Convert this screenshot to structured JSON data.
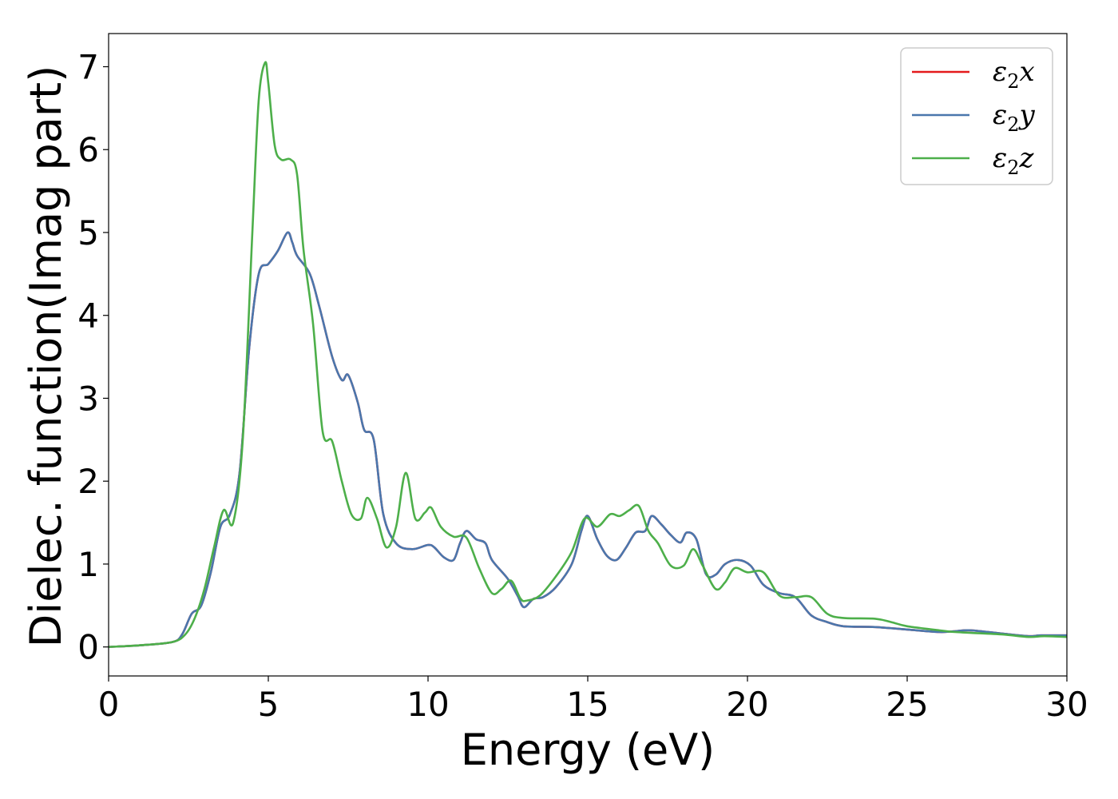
{
  "chart_data": {
    "type": "line",
    "xlabel": "Energy (eV)",
    "ylabel": "Dielec. function(Imag part)",
    "xlim": [
      0,
      30
    ],
    "ylim": [
      -0.35,
      7.4
    ],
    "x_ticks": [
      0,
      5,
      10,
      15,
      20,
      25,
      30
    ],
    "y_ticks": [
      0,
      1,
      2,
      3,
      4,
      5,
      6,
      7
    ],
    "grid": false,
    "legend_position": "top-right",
    "series": [
      {
        "name": "ε₂x",
        "base": "ε",
        "sub": "2",
        "suffix": "x",
        "color": "#e41a1c",
        "x": [
          0,
          1,
          2,
          2.3,
          2.6,
          2.9,
          3.2,
          3.5,
          3.8,
          4.1,
          4.4,
          4.7,
          5.0,
          5.3,
          5.6,
          5.75,
          5.9,
          6.3,
          6.6,
          7.0,
          7.3,
          7.5,
          7.8,
          8.0,
          8.3,
          8.6,
          9.0,
          9.5,
          10.0,
          10.2,
          10.5,
          10.8,
          11.0,
          11.2,
          11.5,
          11.8,
          12.0,
          12.5,
          12.8,
          13.0,
          13.3,
          13.6,
          14.0,
          14.5,
          14.8,
          15.0,
          15.3,
          15.6,
          15.9,
          16.2,
          16.5,
          16.8,
          17.0,
          17.3,
          17.6,
          17.9,
          18.1,
          18.4,
          18.7,
          19.0,
          19.3,
          19.7,
          20.1,
          20.5,
          21.0,
          21.5,
          22.0,
          22.5,
          23.0,
          24.0,
          25.0,
          26.0,
          26.5,
          27.0,
          28.0,
          28.8,
          29.2,
          30.0
        ],
        "y": [
          0,
          0.02,
          0.06,
          0.15,
          0.4,
          0.5,
          0.9,
          1.45,
          1.6,
          2.1,
          3.6,
          4.5,
          4.62,
          4.78,
          5.0,
          4.88,
          4.72,
          4.5,
          4.1,
          3.5,
          3.22,
          3.28,
          2.95,
          2.62,
          2.5,
          1.6,
          1.25,
          1.18,
          1.23,
          1.2,
          1.08,
          1.05,
          1.25,
          1.4,
          1.3,
          1.25,
          1.05,
          0.82,
          0.62,
          0.48,
          0.58,
          0.6,
          0.72,
          1.0,
          1.4,
          1.58,
          1.3,
          1.1,
          1.05,
          1.2,
          1.38,
          1.4,
          1.58,
          1.48,
          1.35,
          1.26,
          1.38,
          1.3,
          0.88,
          0.87,
          1.0,
          1.05,
          0.98,
          0.75,
          0.65,
          0.6,
          0.38,
          0.3,
          0.25,
          0.24,
          0.21,
          0.18,
          0.19,
          0.2,
          0.16,
          0.13,
          0.14,
          0.14
        ]
      },
      {
        "name": "ε₂y",
        "base": "ε",
        "sub": "2",
        "suffix": "y",
        "color": "#4a77ad",
        "x": [
          0,
          1,
          2,
          2.3,
          2.6,
          2.9,
          3.2,
          3.5,
          3.8,
          4.1,
          4.4,
          4.7,
          5.0,
          5.3,
          5.6,
          5.75,
          5.9,
          6.3,
          6.6,
          7.0,
          7.3,
          7.5,
          7.8,
          8.0,
          8.3,
          8.6,
          9.0,
          9.5,
          10.0,
          10.2,
          10.5,
          10.8,
          11.0,
          11.2,
          11.5,
          11.8,
          12.0,
          12.5,
          12.8,
          13.0,
          13.3,
          13.6,
          14.0,
          14.5,
          14.8,
          15.0,
          15.3,
          15.6,
          15.9,
          16.2,
          16.5,
          16.8,
          17.0,
          17.3,
          17.6,
          17.9,
          18.1,
          18.4,
          18.7,
          19.0,
          19.3,
          19.7,
          20.1,
          20.5,
          21.0,
          21.5,
          22.0,
          22.5,
          23.0,
          24.0,
          25.0,
          26.0,
          26.5,
          27.0,
          28.0,
          28.8,
          29.2,
          30.0
        ],
        "y": [
          0,
          0.02,
          0.06,
          0.15,
          0.4,
          0.5,
          0.9,
          1.45,
          1.6,
          2.1,
          3.6,
          4.5,
          4.62,
          4.78,
          5.0,
          4.88,
          4.72,
          4.5,
          4.1,
          3.5,
          3.22,
          3.28,
          2.95,
          2.62,
          2.5,
          1.6,
          1.25,
          1.18,
          1.23,
          1.2,
          1.08,
          1.05,
          1.25,
          1.4,
          1.3,
          1.25,
          1.05,
          0.82,
          0.62,
          0.48,
          0.58,
          0.6,
          0.72,
          1.0,
          1.4,
          1.58,
          1.3,
          1.1,
          1.05,
          1.2,
          1.38,
          1.4,
          1.58,
          1.48,
          1.35,
          1.26,
          1.38,
          1.3,
          0.88,
          0.87,
          1.0,
          1.05,
          0.98,
          0.75,
          0.65,
          0.6,
          0.38,
          0.3,
          0.25,
          0.24,
          0.21,
          0.18,
          0.19,
          0.2,
          0.16,
          0.13,
          0.14,
          0.14
        ]
      },
      {
        "name": "ε₂z",
        "base": "ε",
        "sub": "2",
        "suffix": "z",
        "color": "#4daf4a",
        "x": [
          0,
          1,
          2,
          2.4,
          2.7,
          3.0,
          3.3,
          3.6,
          3.9,
          4.2,
          4.5,
          4.7,
          4.9,
          5.0,
          5.2,
          5.4,
          5.7,
          5.9,
          6.1,
          6.4,
          6.7,
          7.0,
          7.3,
          7.6,
          7.9,
          8.1,
          8.4,
          8.7,
          9.0,
          9.3,
          9.6,
          9.9,
          10.1,
          10.4,
          10.8,
          11.2,
          11.6,
          12.0,
          12.3,
          12.6,
          12.9,
          13.1,
          13.5,
          14.0,
          14.5,
          14.9,
          15.3,
          15.7,
          16.0,
          16.3,
          16.6,
          16.9,
          17.2,
          17.6,
          18.0,
          18.3,
          18.6,
          19.0,
          19.3,
          19.6,
          20.0,
          20.5,
          21.0,
          21.5,
          22.0,
          22.5,
          23.0,
          24.0,
          24.5,
          25.0,
          26.0,
          26.5,
          27.0,
          28.0,
          28.8,
          29.3,
          30.0
        ],
        "y": [
          0,
          0.02,
          0.06,
          0.15,
          0.35,
          0.7,
          1.2,
          1.65,
          1.5,
          2.5,
          5.0,
          6.6,
          7.05,
          6.8,
          6.05,
          5.88,
          5.88,
          5.7,
          4.8,
          3.9,
          2.6,
          2.48,
          2.0,
          1.6,
          1.55,
          1.8,
          1.55,
          1.2,
          1.45,
          2.1,
          1.55,
          1.62,
          1.68,
          1.45,
          1.33,
          1.32,
          0.95,
          0.65,
          0.7,
          0.8,
          0.58,
          0.56,
          0.62,
          0.85,
          1.15,
          1.55,
          1.45,
          1.6,
          1.58,
          1.65,
          1.7,
          1.4,
          1.25,
          0.98,
          0.98,
          1.18,
          0.98,
          0.7,
          0.78,
          0.95,
          0.9,
          0.9,
          0.62,
          0.6,
          0.6,
          0.4,
          0.35,
          0.34,
          0.3,
          0.25,
          0.2,
          0.18,
          0.17,
          0.15,
          0.12,
          0.13,
          0.12
        ]
      }
    ]
  }
}
